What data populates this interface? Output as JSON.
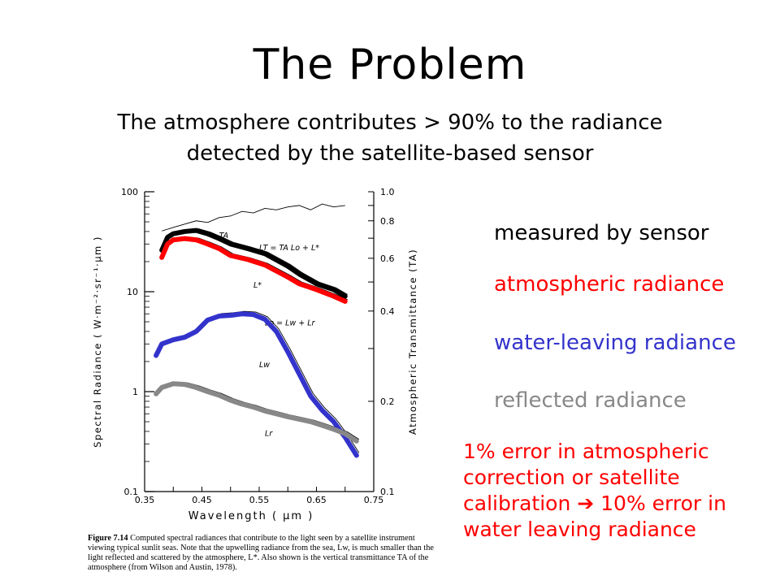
{
  "slide": {
    "title": "The Problem",
    "subtitle": "The atmosphere contributes > 90% to the radiance detected by the satellite-based sensor",
    "legend": [
      {
        "label": "measured by sensor",
        "color": "#000000"
      },
      {
        "label": "atmospheric radiance",
        "color": "#ff0000"
      },
      {
        "label": "water-leaving radiance",
        "color": "#3333cc"
      },
      {
        "label": "reflected radiance",
        "color": "#888888"
      }
    ],
    "note": "1% error in atmospheric correction or satellite calibration ➔ 10% error in water leaving radiance",
    "caption": {
      "fig": "Figure 7.14",
      "text": "Computed spectral radiances that contribute to the light seen by a satellite instrument viewing typical sunlit seas. Note that the upwelling radiance from the sea, Lw, is much smaller than the light reflected and scattered by the atmosphere, L*. Also shown is the vertical transmittance TA of the atmosphere (from Wilson and Austin, 1978)."
    }
  },
  "chart_data": {
    "type": "line",
    "xlabel": "Wavelength ( μm )",
    "ylabel": "Spectral Radiance ( W·m⁻²·sr⁻¹·μm )",
    "y2label": "Atmospheric Transmittance (TA)",
    "xlim": [
      0.35,
      0.75
    ],
    "ylim": [
      0.1,
      100
    ],
    "yscale": "log",
    "y2lim": [
      0.1,
      1.0
    ],
    "y2scale": "log",
    "xticks": [
      "0.35",
      "0.45",
      "0.55",
      "0.65",
      "0.75"
    ],
    "yticks": [
      "0.1",
      "1",
      "10",
      "100"
    ],
    "y2ticks": [
      "0.1",
      "0.2",
      "0.4",
      "0.6",
      "0.8",
      "1.0"
    ],
    "curve_labels": [
      "TA",
      "LT = TA Lo + L*",
      "L*",
      "Lo = Lw + Lr",
      "Lw",
      "Lr"
    ],
    "series": [
      {
        "name": "measured by sensor",
        "color": "#000000",
        "x": [
          0.38,
          0.39,
          0.4,
          0.42,
          0.44,
          0.46,
          0.48,
          0.5,
          0.53,
          0.56,
          0.6,
          0.62,
          0.65,
          0.68,
          0.7
        ],
        "y": [
          26,
          35,
          38,
          40,
          41,
          38,
          34,
          30,
          27,
          24,
          18,
          15,
          12,
          10.5,
          9
        ]
      },
      {
        "name": "atmospheric radiance",
        "color": "#ff0000",
        "x": [
          0.38,
          0.39,
          0.4,
          0.42,
          0.44,
          0.46,
          0.48,
          0.5,
          0.53,
          0.56,
          0.6,
          0.62,
          0.65,
          0.68,
          0.7
        ],
        "y": [
          22,
          30,
          33,
          34,
          33,
          30,
          27,
          23,
          21,
          18.5,
          14,
          12,
          10.5,
          9,
          8
        ]
      },
      {
        "name": "water-leaving radiance",
        "color": "#3333cc",
        "x": [
          0.37,
          0.38,
          0.4,
          0.42,
          0.44,
          0.46,
          0.48,
          0.5,
          0.52,
          0.54,
          0.56,
          0.58,
          0.6,
          0.62,
          0.64,
          0.66,
          0.68,
          0.7,
          0.72
        ],
        "y": [
          2.3,
          3,
          3.3,
          3.5,
          4,
          5.2,
          5.7,
          5.8,
          6,
          5.9,
          5.3,
          4,
          2.5,
          1.5,
          0.9,
          0.65,
          0.5,
          0.35,
          0.23
        ]
      },
      {
        "name": "reflected radiance",
        "color": "#888888",
        "x": [
          0.37,
          0.38,
          0.4,
          0.42,
          0.44,
          0.46,
          0.48,
          0.5,
          0.52,
          0.54,
          0.56,
          0.58,
          0.6,
          0.62,
          0.64,
          0.66,
          0.68,
          0.7,
          0.72
        ],
        "y": [
          0.95,
          1.1,
          1.2,
          1.18,
          1.1,
          1.0,
          0.92,
          0.82,
          0.75,
          0.7,
          0.64,
          0.6,
          0.56,
          0.53,
          0.5,
          0.46,
          0.42,
          0.38,
          0.32
        ]
      }
    ]
  }
}
